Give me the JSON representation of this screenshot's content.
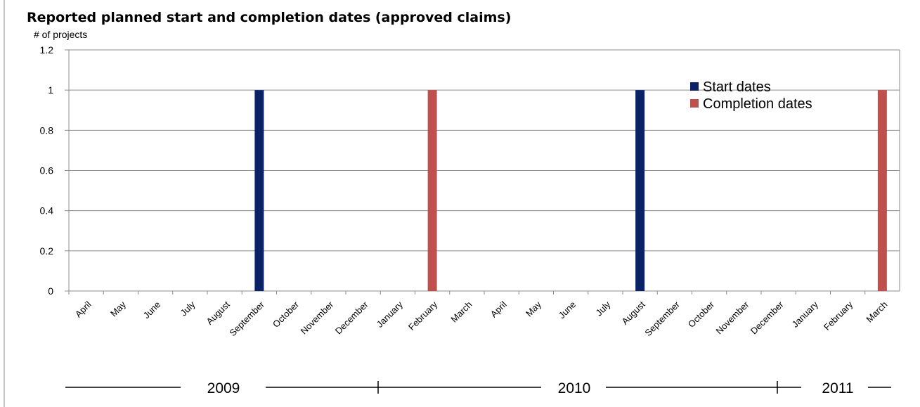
{
  "chart_data": {
    "type": "bar",
    "title": "Reported planned start and completion dates (approved claims)",
    "ylabel": "# of projects",
    "xlabel": "",
    "ylim": [
      0,
      1.2
    ],
    "yticks": [
      "0",
      "0.2",
      "0.4",
      "0.6",
      "0.8",
      "1",
      "1.2"
    ],
    "grid": true,
    "legend_position": "top-right",
    "categories": [
      "April",
      "May",
      "June",
      "July",
      "August",
      "September",
      "October",
      "November",
      "December",
      "January",
      "February",
      "March",
      "April",
      "May",
      "June",
      "July",
      "August",
      "September",
      "October",
      "November",
      "December",
      "January",
      "February",
      "March"
    ],
    "series": [
      {
        "name": "Start dates",
        "color": "#0b2366",
        "values": [
          0,
          0,
          0,
          0,
          0,
          1,
          0,
          0,
          0,
          0,
          0,
          0,
          0,
          0,
          0,
          0,
          1,
          0,
          0,
          0,
          0,
          0,
          0,
          0
        ]
      },
      {
        "name": "Completion dates",
        "color": "#c0504d",
        "values": [
          0,
          0,
          0,
          0,
          0,
          0,
          0,
          0,
          0,
          0,
          1,
          0,
          0,
          0,
          0,
          0,
          0,
          0,
          0,
          0,
          0,
          0,
          0,
          1
        ]
      }
    ],
    "year_groups": [
      {
        "label": "2009"
      },
      {
        "label": "2010"
      },
      {
        "label": "2011"
      }
    ]
  }
}
